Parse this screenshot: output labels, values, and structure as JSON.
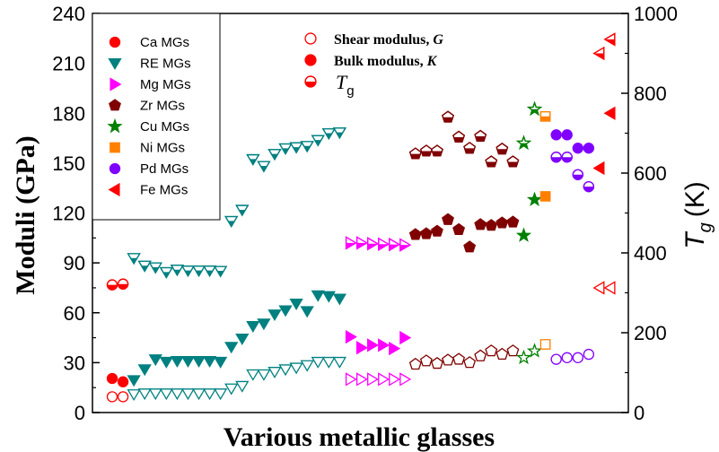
{
  "chart_data": {
    "type": "scatter",
    "title": "",
    "xlabel": "Various metallic glasses",
    "ylabel": "Moduli (GPa)",
    "y2label_main": "T",
    "y2label_sub": "g",
    "y2label_unit": "(K)",
    "ylim": [
      0,
      240
    ],
    "y2lim": [
      0,
      1000
    ],
    "yticks": [
      "0",
      "30",
      "60",
      "90",
      "120",
      "150",
      "180",
      "210",
      "240"
    ],
    "y2ticks": [
      "0",
      "200",
      "400",
      "600",
      "800",
      "1000"
    ],
    "grid": false,
    "legend_position": "top-left",
    "legend_groups": [
      {
        "name": "Ca MGs",
        "color": "#ff0000",
        "marker": "circle"
      },
      {
        "name": "RE MGs",
        "color": "#008080",
        "marker": "triangle-down"
      },
      {
        "name": "Mg MGs",
        "color": "#ff00ff",
        "marker": "triangle-right"
      },
      {
        "name": "Zr MGs",
        "color": "#800000",
        "marker": "pentagon"
      },
      {
        "name": "Cu MGs",
        "color": "#008000",
        "marker": "star"
      },
      {
        "name": "Ni MGs",
        "color": "#ff8000",
        "marker": "square"
      },
      {
        "name": "Pd MGs",
        "color": "#8000ff",
        "marker": "circle"
      },
      {
        "name": "Fe MGs",
        "color": "#ff0000",
        "marker": "triangle-left"
      }
    ],
    "property_legend": [
      {
        "label": "Shear modulus, ",
        "symbol": "G",
        "style": "open"
      },
      {
        "label": "Bulk modulus, ",
        "symbol": "K",
        "style": "filled"
      },
      {
        "label": "",
        "symbol": "T",
        "sub": "g",
        "style": "half"
      }
    ],
    "x_range": [
      0,
      55
    ],
    "groups": [
      {
        "name": "Ca MGs",
        "shear": [
          [
            1,
            9.5
          ],
          [
            2,
            9.5
          ]
        ],
        "bulk": [
          [
            1,
            20.5
          ],
          [
            2,
            18.5
          ]
        ],
        "tg": [
          [
            1,
            320
          ],
          [
            2,
            322
          ]
        ]
      },
      {
        "name": "RE MGs",
        "shear": [
          [
            3,
            11
          ],
          [
            4,
            11.5
          ],
          [
            5,
            11.5
          ],
          [
            6,
            11.5
          ],
          [
            7,
            11.5
          ],
          [
            8,
            11.5
          ],
          [
            9,
            11.5
          ],
          [
            10,
            11.5
          ],
          [
            11,
            11.5
          ],
          [
            12,
            14.5
          ],
          [
            13,
            16
          ],
          [
            14,
            23
          ],
          [
            15,
            23
          ],
          [
            16,
            24.5
          ],
          [
            17,
            26
          ],
          [
            18,
            27
          ],
          [
            19,
            28.5
          ],
          [
            20,
            30.5
          ],
          [
            21,
            30.5
          ],
          [
            22,
            30.5
          ]
        ],
        "bulk": [
          [
            3,
            19.5
          ],
          [
            4,
            26
          ],
          [
            5,
            32
          ],
          [
            6,
            30.5
          ],
          [
            7,
            31
          ],
          [
            8,
            31
          ],
          [
            9,
            31
          ],
          [
            10,
            31
          ],
          [
            11,
            30.5
          ],
          [
            12,
            39.5
          ],
          [
            13,
            44.5
          ],
          [
            14,
            52
          ],
          [
            15,
            53.5
          ],
          [
            16,
            59
          ],
          [
            17,
            61.5
          ],
          [
            18,
            65.5
          ],
          [
            19,
            61
          ],
          [
            20,
            70.5
          ],
          [
            21,
            70
          ],
          [
            22,
            68.5
          ]
        ],
        "tg": [
          [
            3,
            387
          ],
          [
            4,
            368
          ],
          [
            5,
            364
          ],
          [
            6,
            352
          ],
          [
            7,
            358
          ],
          [
            8,
            356
          ],
          [
            9,
            356
          ],
          [
            10,
            356
          ],
          [
            11,
            355
          ],
          [
            12,
            480
          ],
          [
            13,
            508
          ],
          [
            14,
            635
          ],
          [
            15,
            618
          ],
          [
            16,
            648
          ],
          [
            17,
            662
          ],
          [
            18,
            665
          ],
          [
            19,
            668
          ],
          [
            20,
            683
          ],
          [
            21,
            700
          ],
          [
            22,
            702
          ]
        ]
      },
      {
        "name": "Mg MGs",
        "shear": [
          [
            23,
            20
          ],
          [
            24,
            20
          ],
          [
            25,
            20
          ],
          [
            26,
            20
          ],
          [
            27,
            20
          ],
          [
            28,
            20
          ]
        ],
        "bulk": [
          [
            23,
            45.5
          ],
          [
            24,
            39
          ],
          [
            25,
            40.5
          ],
          [
            26,
            40.5
          ],
          [
            27,
            38.5
          ],
          [
            28,
            45
          ]
        ],
        "tg": [
          [
            23,
            425
          ],
          [
            24,
            425
          ],
          [
            25,
            423
          ],
          [
            26,
            422
          ],
          [
            27,
            421
          ],
          [
            28,
            420
          ]
        ]
      },
      {
        "name": "Zr MGs",
        "shear": [
          [
            29,
            29
          ],
          [
            30,
            31
          ],
          [
            31,
            29.5
          ],
          [
            32,
            31.5
          ],
          [
            33,
            32
          ],
          [
            34,
            30
          ],
          [
            35,
            34
          ],
          [
            36,
            37
          ],
          [
            37,
            35
          ],
          [
            38,
            37
          ]
        ],
        "bulk": [
          [
            29,
            107
          ],
          [
            30,
            107.5
          ],
          [
            31,
            109
          ],
          [
            32,
            116
          ],
          [
            33,
            110
          ],
          [
            34,
            99.5
          ],
          [
            35,
            113
          ],
          [
            36,
            112.5
          ],
          [
            37,
            114
          ],
          [
            38,
            114.5
          ]
        ],
        "tg": [
          [
            29,
            648
          ],
          [
            30,
            655
          ],
          [
            31,
            655
          ],
          [
            32,
            740
          ],
          [
            33,
            690
          ],
          [
            34,
            662
          ],
          [
            35,
            692
          ],
          [
            36,
            628
          ],
          [
            37,
            660
          ],
          [
            38,
            628
          ]
        ]
      },
      {
        "name": "Cu MGs",
        "shear": [
          [
            39,
            33
          ],
          [
            40,
            37
          ]
        ],
        "bulk": [
          [
            39,
            106.5
          ],
          [
            40,
            128
          ]
        ],
        "tg": [
          [
            39,
            675
          ],
          [
            40,
            760
          ]
        ]
      },
      {
        "name": "Ni MGs",
        "shear": [
          [
            41,
            41
          ]
        ],
        "bulk": [
          [
            41,
            130
          ]
        ],
        "tg": [
          [
            41,
            742
          ]
        ]
      },
      {
        "name": "Pd MGs",
        "shear": [
          [
            42,
            32
          ],
          [
            43,
            33
          ],
          [
            44,
            33
          ],
          [
            45,
            35
          ]
        ],
        "bulk": [
          [
            42,
            167
          ],
          [
            43,
            167
          ],
          [
            44,
            159
          ],
          [
            45,
            159
          ]
        ],
        "tg": [
          [
            42,
            640
          ],
          [
            43,
            640
          ],
          [
            44,
            596
          ],
          [
            45,
            566
          ]
        ]
      },
      {
        "name": "Fe MGs",
        "shear": [
          [
            46,
            75
          ],
          [
            47,
            75
          ]
        ],
        "bulk": [
          [
            46,
            147
          ],
          [
            47,
            180
          ]
        ],
        "tg": [
          [
            46,
            900
          ],
          [
            47,
            935
          ]
        ]
      }
    ]
  }
}
